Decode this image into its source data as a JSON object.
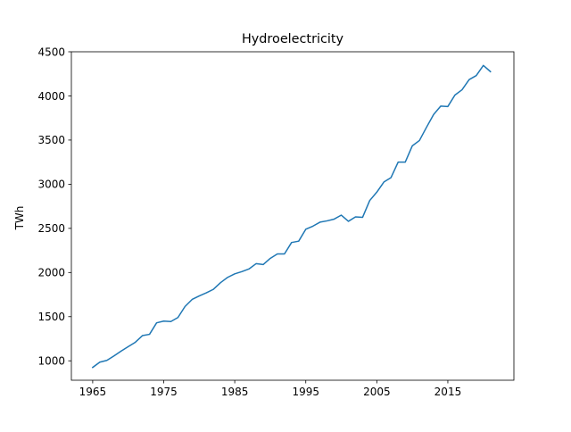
{
  "chart_data": {
    "type": "line",
    "title": "Hydroelectricity",
    "xlabel": "",
    "ylabel": "TWh",
    "xlim": [
      1962,
      2024.3
    ],
    "ylim": [
      780,
      4500
    ],
    "grid": false,
    "x_ticks": [
      1965,
      1975,
      1985,
      1995,
      2005,
      2015
    ],
    "y_ticks": [
      1000,
      1500,
      2000,
      2500,
      3000,
      3500,
      4000,
      4500
    ],
    "series": [
      {
        "name": "",
        "color": "#1f77b4",
        "points": [
          [
            1965,
            925
          ],
          [
            1966,
            985
          ],
          [
            1967,
            1005
          ],
          [
            1968,
            1055
          ],
          [
            1969,
            1110
          ],
          [
            1970,
            1160
          ],
          [
            1971,
            1210
          ],
          [
            1972,
            1285
          ],
          [
            1973,
            1300
          ],
          [
            1974,
            1430
          ],
          [
            1975,
            1450
          ],
          [
            1976,
            1445
          ],
          [
            1977,
            1490
          ],
          [
            1978,
            1615
          ],
          [
            1979,
            1695
          ],
          [
            1980,
            1735
          ],
          [
            1981,
            1770
          ],
          [
            1982,
            1810
          ],
          [
            1983,
            1885
          ],
          [
            1984,
            1945
          ],
          [
            1985,
            1985
          ],
          [
            1986,
            2010
          ],
          [
            1987,
            2040
          ],
          [
            1988,
            2100
          ],
          [
            1989,
            2090
          ],
          [
            1990,
            2160
          ],
          [
            1991,
            2210
          ],
          [
            1992,
            2210
          ],
          [
            1993,
            2340
          ],
          [
            1994,
            2355
          ],
          [
            1995,
            2490
          ],
          [
            1996,
            2525
          ],
          [
            1997,
            2570
          ],
          [
            1998,
            2585
          ],
          [
            1999,
            2605
          ],
          [
            2000,
            2650
          ],
          [
            2001,
            2580
          ],
          [
            2002,
            2630
          ],
          [
            2003,
            2625
          ],
          [
            2004,
            2815
          ],
          [
            2005,
            2910
          ],
          [
            2006,
            3025
          ],
          [
            2007,
            3075
          ],
          [
            2008,
            3250
          ],
          [
            2009,
            3250
          ],
          [
            2010,
            3435
          ],
          [
            2011,
            3495
          ],
          [
            2012,
            3645
          ],
          [
            2013,
            3790
          ],
          [
            2014,
            3885
          ],
          [
            2015,
            3880
          ],
          [
            2016,
            4010
          ],
          [
            2017,
            4070
          ],
          [
            2018,
            4185
          ],
          [
            2019,
            4230
          ],
          [
            2020,
            4345
          ],
          [
            2021,
            4275
          ]
        ]
      }
    ]
  }
}
